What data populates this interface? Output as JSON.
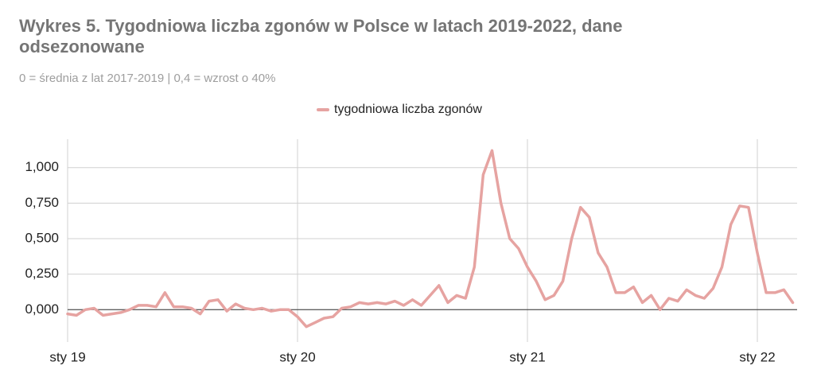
{
  "chart_data": {
    "type": "line",
    "title": "Wykres 5. Tygodniowa liczba zgonów w Polsce w latach 2019-2022, dane odsezonowane",
    "subtitle": "0 = średnia z lat 2017-2019 | 0,4 = wzrost o 40%",
    "categories": [
      "sty 19",
      null,
      null,
      null,
      null,
      null,
      null,
      null,
      null,
      null,
      null,
      null,
      null,
      null,
      null,
      null,
      null,
      null,
      null,
      null,
      null,
      null,
      null,
      null,
      null,
      null,
      "sty 20",
      null,
      null,
      null,
      null,
      null,
      null,
      null,
      null,
      null,
      null,
      null,
      null,
      null,
      null,
      null,
      null,
      null,
      null,
      null,
      null,
      null,
      null,
      null,
      null,
      null,
      "sty 21",
      null,
      null,
      null,
      null,
      null,
      null,
      null,
      null,
      null,
      null,
      null,
      null,
      null,
      null,
      null,
      null,
      null,
      null,
      null,
      null,
      null,
      null,
      null,
      null,
      null,
      "sty 22",
      null,
      null,
      null,
      null
    ],
    "series": [
      {
        "name": "tygodniowa liczba zgonów",
        "color": "#e6a3a1",
        "values": [
          -0.03,
          -0.04,
          0.0,
          0.01,
          -0.04,
          -0.03,
          -0.02,
          0.0,
          0.03,
          0.03,
          0.02,
          0.12,
          0.02,
          0.02,
          0.01,
          -0.03,
          0.06,
          0.07,
          -0.01,
          0.04,
          0.01,
          0.0,
          0.01,
          -0.01,
          0.0,
          0.0,
          -0.05,
          -0.12,
          -0.09,
          -0.06,
          -0.05,
          0.01,
          0.02,
          0.05,
          0.04,
          0.05,
          0.04,
          0.06,
          0.03,
          0.07,
          0.03,
          0.1,
          0.17,
          0.05,
          0.1,
          0.08,
          0.3,
          0.95,
          1.12,
          0.75,
          0.5,
          0.43,
          0.3,
          0.2,
          0.07,
          0.1,
          0.2,
          0.5,
          0.72,
          0.65,
          0.4,
          0.3,
          0.12,
          0.12,
          0.16,
          0.05,
          0.1,
          0.0,
          0.08,
          0.06,
          0.14,
          0.1,
          0.08,
          0.15,
          0.3,
          0.6,
          0.73,
          0.72,
          0.4,
          0.12,
          0.12,
          0.14,
          0.05
        ]
      }
    ],
    "ylim": [
      -0.2,
      1.2
    ],
    "yticks": [
      {
        "value": 0,
        "label": "0,000"
      },
      {
        "value": 0.25,
        "label": "0,250"
      },
      {
        "value": 0.5,
        "label": "0,500"
      },
      {
        "value": 0.75,
        "label": "0,750"
      },
      {
        "value": 1,
        "label": "1,000"
      }
    ],
    "grid": true,
    "legend": "top"
  }
}
